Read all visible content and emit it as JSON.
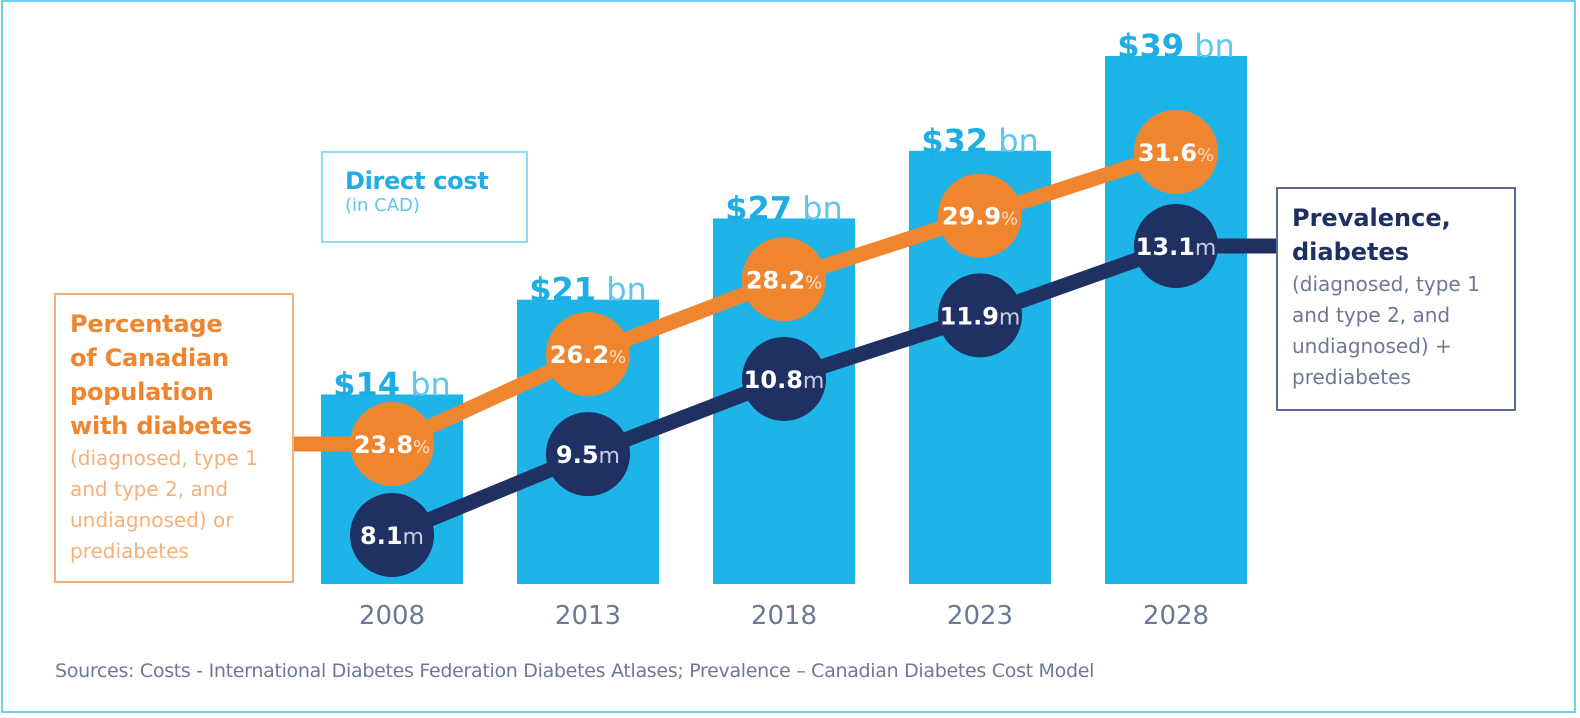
{
  "chart_data": {
    "type": "bar",
    "title": "",
    "categories": [
      "2008",
      "2013",
      "2018",
      "2023",
      "2028"
    ],
    "series": [
      {
        "name": "Direct cost (in CAD)",
        "type": "bar",
        "unit": "bn",
        "prefix": "$",
        "values": [
          14,
          21,
          27,
          32,
          39
        ],
        "color": "#1fb4e8"
      },
      {
        "name": "Percentage of Canadian population with diabetes",
        "type": "line",
        "unit": "%",
        "values": [
          23.8,
          26.2,
          28.2,
          29.9,
          31.6
        ],
        "color": "#f0852f"
      },
      {
        "name": "Prevalence, diabetes",
        "type": "line",
        "unit": "m",
        "values": [
          8.1,
          9.5,
          10.8,
          11.9,
          13.1
        ],
        "color": "#1f3063"
      }
    ],
    "xlabel": "",
    "ylabel": "",
    "ylim": [
      0,
      40
    ],
    "grid": false,
    "legend": "boxed labels: direct cost top-center, percentage left, prevalence right"
  },
  "labels": {
    "cost_box": {
      "title": "Direct cost",
      "subtitle": "(in CAD)"
    },
    "pct_box": {
      "title_lines": [
        "Percentage",
        "of Canadian",
        "population",
        "with diabetes"
      ],
      "sub_lines": [
        "(diagnosed, type 1",
        "and type 2, and",
        "undiagnosed) or",
        "prediabetes"
      ]
    },
    "prev_box": {
      "title_lines": [
        "Prevalence,",
        "diabetes"
      ],
      "sub_lines": [
        "(diagnosed, type 1",
        "and type 2, and",
        "undiagnosed) +",
        "prediabetes"
      ]
    }
  },
  "sources": "Sources: Costs - International Diabetes Federation Diabetes Atlases; Prevalence – Canadian Diabetes Cost Model",
  "colors": {
    "bar": "#1fb4e8",
    "orange": "#f0852f",
    "navy": "#1f3063",
    "frame": "#6fd0f0"
  }
}
